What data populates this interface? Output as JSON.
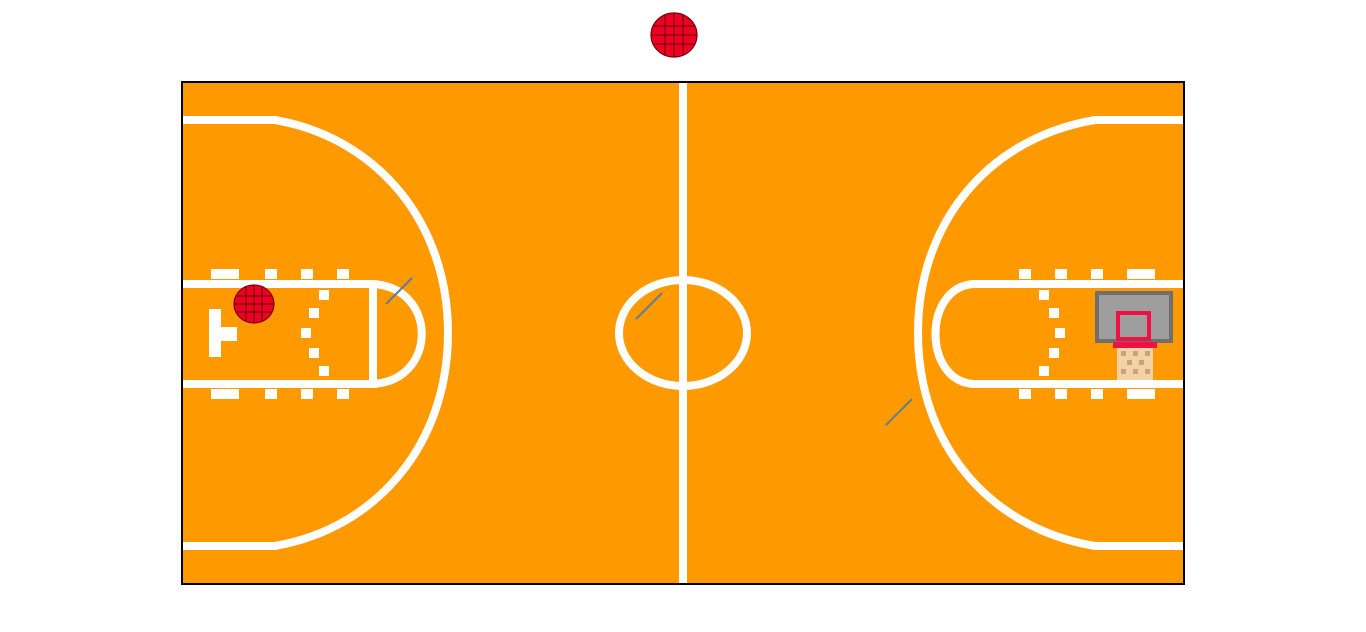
{
  "colors": {
    "court": "#ff9900",
    "lines": "#ffffff",
    "border": "#000000",
    "ball": "#ee0022",
    "ball_seams": "#7a0010",
    "backboard": "#9e9e9e",
    "backboard_frame": "#6f6f6f",
    "rim": "#ee1144",
    "net": "#f3d3a6",
    "aim_marker": "#5f7f91"
  },
  "icons": {
    "spare_ball": "basketball-icon",
    "player_ball": "basketball-icon",
    "hoop": "basketball-hoop-icon"
  }
}
